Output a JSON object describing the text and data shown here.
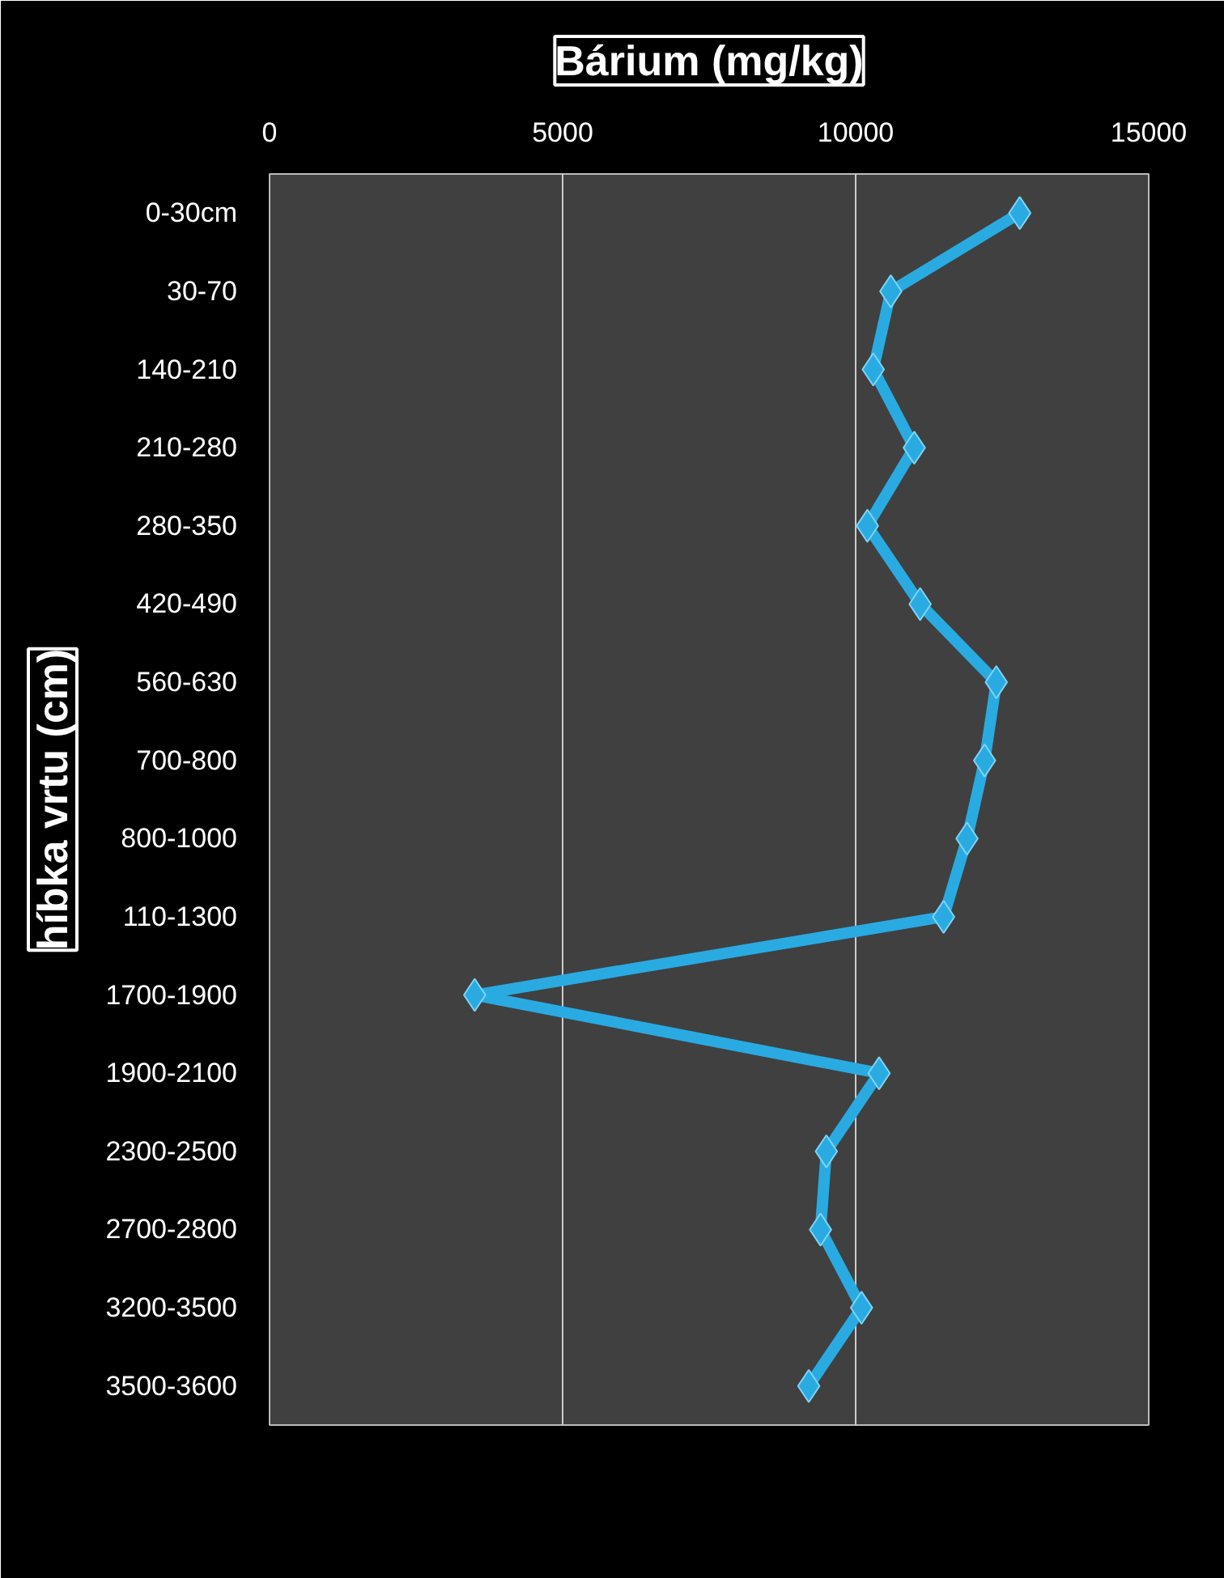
{
  "chart_data": {
    "type": "line",
    "title": "Bárium (mg/kg)",
    "ylabel": "híbka vrtu (cm)",
    "orientation": "horizontal",
    "categories": [
      "0-30cm",
      "30-70",
      "140-210",
      "210-280",
      "280-350",
      "420-490",
      "560-630",
      "700-800",
      "800-1000",
      "110-1300",
      "1700-1900",
      "1900-2100",
      "2300-2500",
      "2700-2800",
      "3200-3500",
      "3500-3600"
    ],
    "values": [
      12800,
      10600,
      10300,
      11000,
      10200,
      11100,
      12400,
      12200,
      11900,
      11500,
      3500,
      10400,
      9500,
      9400,
      10100,
      9200
    ],
    "color": "#29abe2",
    "marker": "diamond",
    "line_style": "solid",
    "xlim": [
      0,
      15000
    ],
    "xticks": [
      0,
      5000,
      10000,
      15000
    ],
    "grid": "x"
  }
}
